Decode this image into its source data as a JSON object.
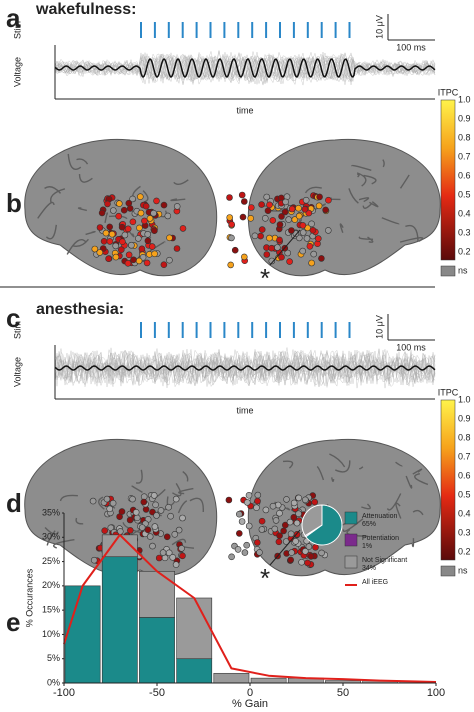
{
  "panels": {
    "a": {
      "letter": "a",
      "title": "wakefulness:",
      "stim": "Stim",
      "voltage": "Voltage",
      "time": "time",
      "scale_v": "10 μV",
      "scale_t": "100 ms"
    },
    "b": {
      "letter": "b",
      "colorbar_title": "ITPC",
      "colorbar_ticks": [
        "1.0",
        "0.9",
        "0.8",
        "0.7",
        "0.6",
        "0.5",
        "0.4",
        "0.3",
        "0.2"
      ],
      "ns": "ns",
      "asterisk": "*"
    },
    "c": {
      "letter": "c",
      "title": "anesthesia:",
      "stim": "Stim",
      "voltage": "Voltage",
      "time": "time",
      "scale_v": "10 μV",
      "scale_t": "100 ms"
    },
    "d": {
      "letter": "d",
      "colorbar_title": "ITPC",
      "colorbar_ticks": [
        "1.0",
        "0.9",
        "0.8",
        "0.7",
        "0.6",
        "0.5",
        "0.4",
        "0.3",
        "0.2"
      ],
      "ns": "ns",
      "asterisk": "*"
    },
    "e": {
      "letter": "e"
    }
  },
  "chart_data": {
    "type": "histogram",
    "xlabel": "% Gain",
    "ylabel": "% Occurances",
    "bins": [
      -100,
      -80,
      -60,
      -40,
      -20,
      0,
      20,
      40,
      60,
      80,
      100
    ],
    "series": [
      {
        "name": "Attenuation",
        "color": "#1b8a8a",
        "values": [
          20,
          26,
          13.5,
          5,
          0,
          0,
          0,
          0,
          0,
          0
        ]
      },
      {
        "name": "Potentiation",
        "color": "#7b2a8c",
        "values": [
          0,
          0,
          0,
          0,
          0,
          0,
          0,
          0,
          0,
          0
        ]
      },
      {
        "name": "Not Significant",
        "color": "#9a9a9a",
        "values": [
          0,
          4.5,
          9.5,
          12.5,
          2,
          1,
          1,
          0.5,
          0.5,
          0.3
        ]
      },
      {
        "name": "All iEEG",
        "color": "#e0201b",
        "type": "line",
        "x": [
          -100,
          -90,
          -70,
          -50,
          -30,
          -10,
          10,
          30,
          50,
          70,
          90,
          100
        ],
        "values": [
          8,
          20,
          30.5,
          23,
          17.5,
          3,
          1.5,
          1,
          0.8,
          0.5,
          0.3,
          0.2
        ]
      }
    ],
    "pie": {
      "values": [
        65,
        1,
        34
      ],
      "value_labels": [
        "65%",
        "1%",
        "34%"
      ]
    },
    "xlim": [
      -100,
      100
    ],
    "xticks": [
      -100,
      -50,
      0,
      50,
      100
    ],
    "ylim": [
      0,
      35
    ],
    "yticks": [
      {
        "value": 0,
        "label": "0%"
      },
      {
        "value": 5,
        "label": "5%"
      },
      {
        "value": 10,
        "label": "10%"
      },
      {
        "value": 15,
        "label": "15%"
      },
      {
        "value": 20,
        "label": "20%"
      },
      {
        "value": 25,
        "label": "25%"
      },
      {
        "value": 30,
        "label": "30%"
      },
      {
        "value": 35,
        "label": "35%"
      }
    ]
  }
}
